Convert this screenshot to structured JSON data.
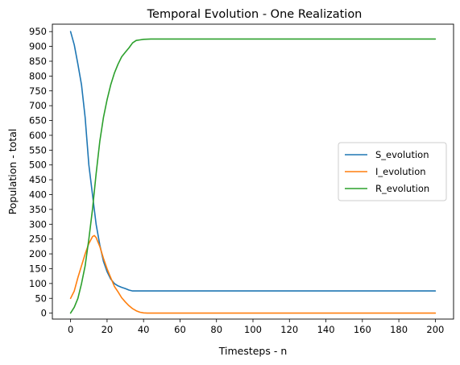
{
  "chart_data": {
    "type": "line",
    "title": "Temporal Evolution - One Realization",
    "xlabel": "Timesteps - n",
    "ylabel": "Population - total",
    "xlim": [
      -10,
      210
    ],
    "ylim": [
      -20,
      975
    ],
    "xticks": [
      0,
      20,
      40,
      60,
      80,
      100,
      120,
      140,
      160,
      180,
      200
    ],
    "yticks": [
      0,
      50,
      100,
      150,
      200,
      250,
      300,
      350,
      400,
      450,
      500,
      550,
      600,
      650,
      700,
      750,
      800,
      850,
      900,
      950
    ],
    "grid": false,
    "legend_position": "center-right",
    "series": [
      {
        "name": "S_evolution",
        "color": "#1f77b4",
        "points": [
          [
            0,
            950
          ],
          [
            2,
            905
          ],
          [
            4,
            840
          ],
          [
            6,
            770
          ],
          [
            8,
            660
          ],
          [
            9,
            580
          ],
          [
            10,
            500
          ],
          [
            12,
            400
          ],
          [
            14,
            300
          ],
          [
            16,
            230
          ],
          [
            18,
            175
          ],
          [
            20,
            140
          ],
          [
            22,
            115
          ],
          [
            24,
            100
          ],
          [
            26,
            92
          ],
          [
            28,
            87
          ],
          [
            30,
            83
          ],
          [
            32,
            78
          ],
          [
            34,
            75
          ],
          [
            36,
            75
          ],
          [
            40,
            75
          ],
          [
            50,
            75
          ],
          [
            100,
            75
          ],
          [
            150,
            75
          ],
          [
            200,
            75
          ]
        ]
      },
      {
        "name": "I_evolution",
        "color": "#ff7f0e",
        "points": [
          [
            0,
            50
          ],
          [
            2,
            75
          ],
          [
            4,
            120
          ],
          [
            6,
            160
          ],
          [
            8,
            200
          ],
          [
            10,
            235
          ],
          [
            12,
            258
          ],
          [
            13,
            262
          ],
          [
            14,
            255
          ],
          [
            16,
            225
          ],
          [
            18,
            185
          ],
          [
            20,
            150
          ],
          [
            22,
            120
          ],
          [
            24,
            90
          ],
          [
            26,
            72
          ],
          [
            28,
            52
          ],
          [
            30,
            38
          ],
          [
            32,
            25
          ],
          [
            34,
            15
          ],
          [
            36,
            8
          ],
          [
            38,
            3
          ],
          [
            40,
            1
          ],
          [
            42,
            0
          ],
          [
            50,
            0
          ],
          [
            100,
            0
          ],
          [
            150,
            0
          ],
          [
            200,
            0
          ]
        ]
      },
      {
        "name": "R_evolution",
        "color": "#2ca02c",
        "points": [
          [
            0,
            0
          ],
          [
            2,
            20
          ],
          [
            4,
            50
          ],
          [
            6,
            100
          ],
          [
            8,
            160
          ],
          [
            10,
            250
          ],
          [
            12,
            350
          ],
          [
            14,
            470
          ],
          [
            16,
            580
          ],
          [
            18,
            660
          ],
          [
            20,
            720
          ],
          [
            22,
            770
          ],
          [
            24,
            810
          ],
          [
            26,
            840
          ],
          [
            28,
            865
          ],
          [
            30,
            880
          ],
          [
            32,
            895
          ],
          [
            34,
            912
          ],
          [
            36,
            920
          ],
          [
            38,
            922
          ],
          [
            40,
            924
          ],
          [
            44,
            925
          ],
          [
            50,
            925
          ],
          [
            100,
            925
          ],
          [
            150,
            925
          ],
          [
            200,
            925
          ]
        ]
      }
    ]
  }
}
